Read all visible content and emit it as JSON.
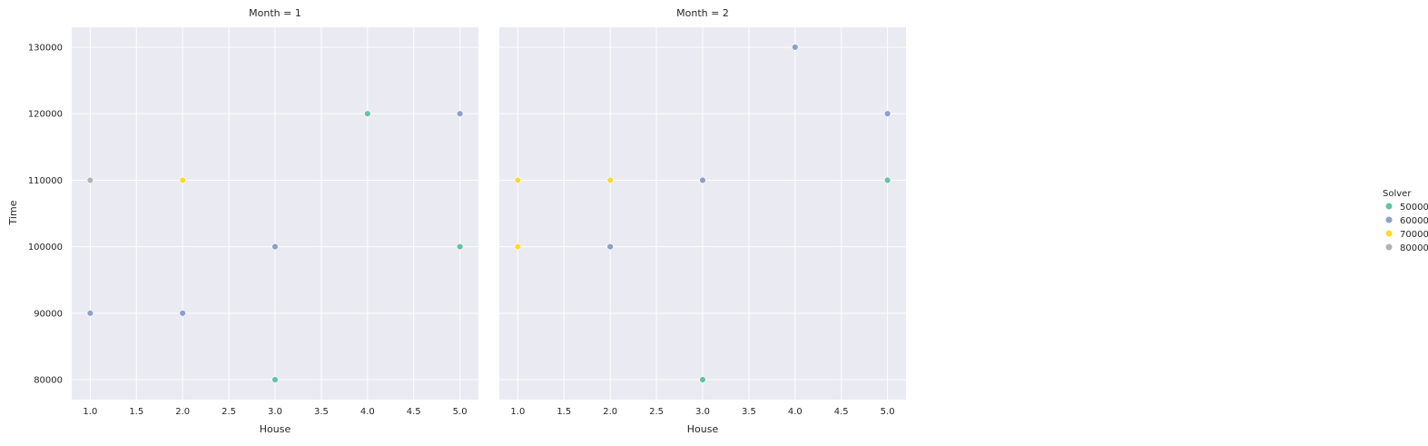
{
  "chart_data": {
    "type": "scatter",
    "facet_variable": "Month",
    "hue_variable": "Solver",
    "xlabel": "House",
    "ylabel": "Time",
    "xlim": [
      0.8,
      5.2
    ],
    "ylim": [
      77000,
      133000
    ],
    "x_ticks": [
      "1.0",
      "1.5",
      "2.0",
      "2.5",
      "3.0",
      "3.5",
      "4.0",
      "4.5",
      "5.0"
    ],
    "y_ticks": [
      "80000",
      "90000",
      "100000",
      "110000",
      "120000",
      "130000"
    ],
    "grid": true,
    "legend": {
      "title": "Solver",
      "placement": "right",
      "entries": [
        {
          "label": "50000",
          "color": "#66c2a5"
        },
        {
          "label": "60000",
          "color": "#8da0cb"
        },
        {
          "label": "70000",
          "color": "#ffd92f"
        },
        {
          "label": "80000",
          "color": "#b3b3b3"
        }
      ]
    },
    "panels": [
      {
        "title": "Month = 1",
        "points": [
          {
            "x": 1,
            "y": 110000,
            "solver": "80000"
          },
          {
            "x": 1,
            "y": 90000,
            "solver": "60000"
          },
          {
            "x": 2,
            "y": 110000,
            "solver": "70000"
          },
          {
            "x": 2,
            "y": 90000,
            "solver": "60000"
          },
          {
            "x": 3,
            "y": 100000,
            "solver": "60000"
          },
          {
            "x": 3,
            "y": 80000,
            "solver": "50000"
          },
          {
            "x": 4,
            "y": 120000,
            "solver": "50000"
          },
          {
            "x": 5,
            "y": 120000,
            "solver": "60000"
          },
          {
            "x": 5,
            "y": 100000,
            "solver": "50000"
          }
        ]
      },
      {
        "title": "Month = 2",
        "points": [
          {
            "x": 1,
            "y": 110000,
            "solver": "70000"
          },
          {
            "x": 1,
            "y": 100000,
            "solver": "70000"
          },
          {
            "x": 2,
            "y": 110000,
            "solver": "70000"
          },
          {
            "x": 2,
            "y": 100000,
            "solver": "60000"
          },
          {
            "x": 3,
            "y": 110000,
            "solver": "60000"
          },
          {
            "x": 3,
            "y": 80000,
            "solver": "50000"
          },
          {
            "x": 4,
            "y": 130000,
            "solver": "60000"
          },
          {
            "x": 5,
            "y": 120000,
            "solver": "60000"
          },
          {
            "x": 5,
            "y": 110000,
            "solver": "50000"
          }
        ]
      }
    ]
  }
}
